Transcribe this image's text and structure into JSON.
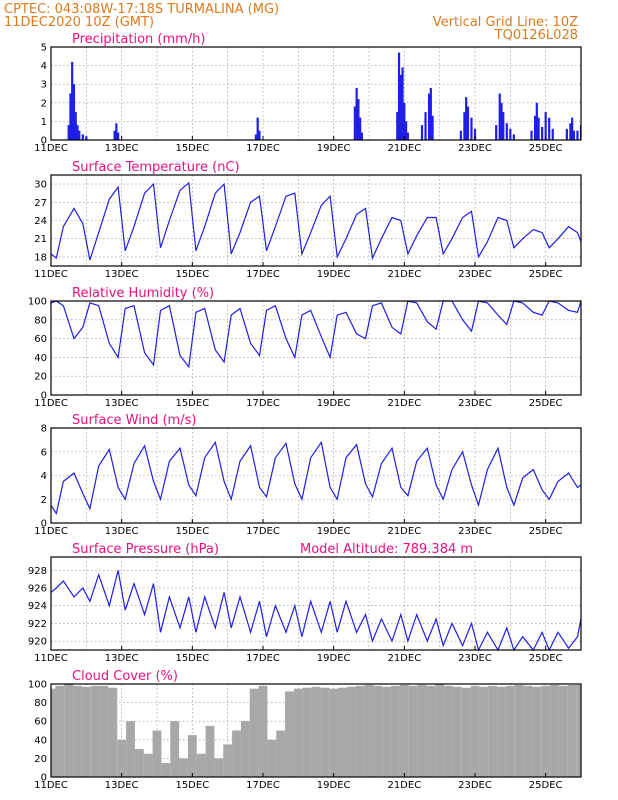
{
  "header": {
    "line1_left": "CPTEC:   043:08W-17:18S   TURMALINA (MG)",
    "line2_left": "11DEC2020 10Z (GMT)",
    "line1_right": "Vertical Grid Line: 10Z",
    "line2_right": "TQ0126L028"
  },
  "colors": {
    "header": "#e07a1e",
    "title": "#e8117f",
    "line": "#1f1fe6",
    "bar": "#1f1fe6",
    "cloud": "#a8a8a8"
  },
  "x_axis": {
    "start_day": 11,
    "end_day": 26,
    "tick_labels": [
      "11DEC",
      "13DEC",
      "15DEC",
      "17DEC",
      "19DEC",
      "21DEC",
      "23DEC",
      "25DEC"
    ]
  },
  "panels": [
    {
      "id": "precip",
      "title": "Precipitation (mm/h)",
      "extra": "",
      "type": "bar",
      "ylim": [
        0,
        5
      ],
      "yticks": [
        0,
        1,
        2,
        3,
        4,
        5
      ]
    },
    {
      "id": "temp",
      "title": "Surface Temperature (nC)",
      "extra": "",
      "type": "line",
      "ylim": [
        16.5,
        31.5
      ],
      "yticks": [
        18,
        21,
        24,
        27,
        30
      ]
    },
    {
      "id": "rh",
      "title": "Relative Humidity (%)",
      "extra": "",
      "type": "line",
      "ylim": [
        0,
        100
      ],
      "yticks": [
        0,
        20,
        40,
        60,
        80,
        100
      ]
    },
    {
      "id": "wind",
      "title": "Surface Wind (m/s)",
      "extra": "",
      "type": "line",
      "ylim": [
        0,
        8
      ],
      "yticks": [
        0,
        2,
        4,
        6,
        8
      ]
    },
    {
      "id": "pres",
      "title": "Surface Pressure (hPa)",
      "extra": "Model Altitude: 789.384 m",
      "type": "line",
      "ylim": [
        919,
        929.5
      ],
      "yticks": [
        920,
        922,
        924,
        926,
        928
      ]
    },
    {
      "id": "cloud",
      "title": "Cloud Cover (%)",
      "extra": "",
      "type": "bar",
      "ylim": [
        0,
        100
      ],
      "yticks": [
        0,
        20,
        40,
        60,
        80,
        100
      ]
    }
  ],
  "chart_data": [
    {
      "type": "bar",
      "title": "Precipitation (mm/h)",
      "ylim": [
        0,
        5
      ],
      "x": [
        11.5,
        11.55,
        11.6,
        11.65,
        11.7,
        11.75,
        11.8,
        11.9,
        12.0,
        12.8,
        12.85,
        12.9,
        16.8,
        16.85,
        16.9,
        19.6,
        19.65,
        19.7,
        19.75,
        19.8,
        20.8,
        20.85,
        20.9,
        20.95,
        21.0,
        21.05,
        21.1,
        21.5,
        21.6,
        21.7,
        21.75,
        21.8,
        22.6,
        22.7,
        22.75,
        22.8,
        22.9,
        23.0,
        23.6,
        23.7,
        23.75,
        23.8,
        23.9,
        24.0,
        24.1,
        24.6,
        24.7,
        24.75,
        24.8,
        24.9,
        25.0,
        25.1,
        25.2,
        25.6,
        25.7,
        25.75,
        25.8,
        25.9,
        26.0
      ],
      "values": [
        0.8,
        2.5,
        4.2,
        3.0,
        1.5,
        0.8,
        0.5,
        0.3,
        0.2,
        0.5,
        0.9,
        0.4,
        0.3,
        1.2,
        0.5,
        1.8,
        2.8,
        2.2,
        1.2,
        0.4,
        1.5,
        4.7,
        3.5,
        3.9,
        2.0,
        1.0,
        0.4,
        0.8,
        1.5,
        2.5,
        2.8,
        1.3,
        0.5,
        1.5,
        2.3,
        1.8,
        1.2,
        0.6,
        0.8,
        2.5,
        2.0,
        1.5,
        0.9,
        0.6,
        0.3,
        0.5,
        1.3,
        2.0,
        1.2,
        0.7,
        1.5,
        1.2,
        0.6,
        0.6,
        0.9,
        1.2,
        0.5,
        0.5,
        0.8
      ]
    },
    {
      "type": "line",
      "title": "Surface Temperature (nC)",
      "ylim": [
        16.5,
        31.5
      ],
      "x": [
        11.0,
        11.15,
        11.35,
        11.65,
        11.9,
        12.1,
        12.35,
        12.65,
        12.9,
        13.1,
        13.35,
        13.65,
        13.9,
        14.1,
        14.35,
        14.65,
        14.9,
        15.1,
        15.35,
        15.65,
        15.9,
        16.1,
        16.35,
        16.65,
        16.9,
        17.1,
        17.35,
        17.65,
        17.9,
        18.1,
        18.35,
        18.65,
        18.9,
        19.1,
        19.35,
        19.65,
        19.9,
        20.1,
        20.35,
        20.65,
        20.9,
        21.1,
        21.35,
        21.65,
        21.9,
        22.1,
        22.35,
        22.65,
        22.9,
        23.1,
        23.35,
        23.65,
        23.9,
        24.1,
        24.35,
        24.65,
        24.9,
        25.1,
        25.35,
        25.65,
        25.9,
        26.0
      ],
      "values": [
        18.5,
        17.8,
        23.0,
        26.0,
        23.5,
        17.5,
        22.0,
        27.5,
        29.5,
        19.0,
        23.0,
        28.5,
        30.0,
        19.5,
        24.0,
        29.0,
        30.2,
        19.0,
        23.0,
        28.5,
        30.0,
        18.5,
        22.0,
        27.0,
        28.0,
        19.0,
        23.0,
        28.0,
        28.5,
        18.5,
        22.0,
        26.5,
        28.0,
        18.0,
        21.0,
        25.0,
        26.0,
        17.8,
        21.0,
        24.5,
        24.0,
        18.5,
        21.5,
        24.5,
        24.5,
        18.5,
        21.0,
        24.5,
        25.5,
        18.0,
        20.5,
        24.5,
        24.0,
        19.5,
        21.0,
        22.5,
        22.0,
        19.5,
        21.0,
        23.0,
        22.0,
        20.5
      ]
    },
    {
      "type": "line",
      "title": "Relative Humidity (%)",
      "ylim": [
        0,
        100
      ],
      "x": [
        11.0,
        11.15,
        11.35,
        11.65,
        11.9,
        12.1,
        12.35,
        12.65,
        12.9,
        13.1,
        13.35,
        13.65,
        13.9,
        14.1,
        14.35,
        14.65,
        14.9,
        15.1,
        15.35,
        15.65,
        15.9,
        16.1,
        16.35,
        16.65,
        16.9,
        17.1,
        17.35,
        17.65,
        17.9,
        18.1,
        18.35,
        18.65,
        18.9,
        19.1,
        19.35,
        19.65,
        19.9,
        20.1,
        20.35,
        20.65,
        20.9,
        21.1,
        21.35,
        21.65,
        21.9,
        22.1,
        22.35,
        22.65,
        22.9,
        23.1,
        23.35,
        23.65,
        23.9,
        24.1,
        24.35,
        24.65,
        24.9,
        25.1,
        25.35,
        25.65,
        25.9,
        26.0
      ],
      "values": [
        98,
        100,
        95,
        60,
        72,
        98,
        95,
        55,
        40,
        92,
        95,
        45,
        32,
        90,
        95,
        42,
        30,
        88,
        92,
        48,
        35,
        85,
        92,
        55,
        42,
        90,
        95,
        60,
        40,
        85,
        90,
        62,
        40,
        85,
        88,
        65,
        60,
        95,
        98,
        72,
        65,
        100,
        98,
        78,
        70,
        100,
        100,
        80,
        68,
        100,
        98,
        85,
        75,
        100,
        98,
        88,
        85,
        100,
        98,
        90,
        88,
        100
      ]
    },
    {
      "type": "line",
      "title": "Surface Wind (m/s)",
      "ylim": [
        0,
        8
      ],
      "x": [
        11.0,
        11.15,
        11.35,
        11.65,
        11.9,
        12.1,
        12.35,
        12.65,
        12.9,
        13.1,
        13.35,
        13.65,
        13.9,
        14.1,
        14.35,
        14.65,
        14.9,
        15.1,
        15.35,
        15.65,
        15.9,
        16.1,
        16.35,
        16.65,
        16.9,
        17.1,
        17.35,
        17.65,
        17.9,
        18.1,
        18.35,
        18.65,
        18.9,
        19.1,
        19.35,
        19.65,
        19.9,
        20.1,
        20.35,
        20.65,
        20.9,
        21.1,
        21.35,
        21.65,
        21.9,
        22.1,
        22.35,
        22.65,
        22.9,
        23.1,
        23.35,
        23.65,
        23.9,
        24.1,
        24.35,
        24.65,
        24.9,
        25.1,
        25.35,
        25.65,
        25.9,
        26.0
      ],
      "values": [
        1.5,
        0.8,
        3.5,
        4.2,
        2.5,
        1.2,
        4.8,
        6.2,
        3.0,
        2.0,
        5.0,
        6.5,
        3.5,
        2.0,
        5.2,
        6.3,
        3.2,
        2.3,
        5.5,
        6.8,
        3.5,
        2.0,
        5.2,
        6.5,
        3.0,
        2.2,
        5.5,
        6.7,
        3.3,
        2.0,
        5.5,
        6.8,
        3.0,
        2.0,
        5.5,
        6.6,
        3.3,
        2.2,
        5.0,
        6.3,
        3.0,
        2.3,
        5.2,
        6.3,
        3.2,
        2.0,
        4.5,
        6.0,
        3.2,
        1.5,
        4.5,
        6.3,
        3.0,
        1.5,
        3.8,
        4.5,
        2.8,
        2.0,
        3.5,
        4.2,
        3.0,
        3.2
      ]
    },
    {
      "type": "line",
      "title": "Surface Pressure (hPa)",
      "ylim": [
        919,
        929.5
      ],
      "x": [
        11.0,
        11.15,
        11.35,
        11.65,
        11.9,
        12.1,
        12.35,
        12.65,
        12.9,
        13.1,
        13.35,
        13.65,
        13.9,
        14.1,
        14.35,
        14.65,
        14.9,
        15.1,
        15.35,
        15.65,
        15.9,
        16.1,
        16.35,
        16.65,
        16.9,
        17.1,
        17.35,
        17.65,
        17.9,
        18.1,
        18.35,
        18.65,
        18.9,
        19.1,
        19.35,
        19.65,
        19.9,
        20.1,
        20.35,
        20.65,
        20.9,
        21.1,
        21.35,
        21.65,
        21.9,
        22.1,
        22.35,
        22.65,
        22.9,
        23.1,
        23.35,
        23.65,
        23.9,
        24.1,
        24.35,
        24.65,
        24.9,
        25.1,
        25.35,
        25.65,
        25.9,
        26.0
      ],
      "values": [
        925.5,
        926.0,
        926.8,
        925.0,
        926.0,
        924.5,
        927.5,
        924.0,
        928.0,
        923.5,
        926.5,
        923.0,
        926.5,
        921.0,
        925.0,
        921.5,
        925.0,
        921.0,
        925.0,
        921.5,
        925.5,
        921.5,
        925.0,
        921.0,
        924.5,
        920.5,
        924.0,
        921.0,
        924.0,
        920.5,
        924.5,
        921.0,
        924.5,
        921.0,
        924.5,
        921.0,
        923.0,
        920.0,
        922.5,
        920.0,
        923.0,
        920.0,
        923.0,
        920.0,
        922.5,
        919.5,
        922.0,
        919.5,
        922.0,
        919.0,
        921.0,
        919.0,
        921.5,
        919.0,
        920.5,
        919.0,
        921.0,
        919.0,
        921.0,
        919.2,
        920.5,
        922.5
      ]
    },
    {
      "type": "bar",
      "title": "Cloud Cover (%)",
      "ylim": [
        0,
        100
      ],
      "x": [
        11.0,
        11.25,
        11.5,
        11.75,
        12.0,
        12.25,
        12.5,
        12.75,
        13.0,
        13.25,
        13.5,
        13.75,
        14.0,
        14.25,
        14.5,
        14.75,
        15.0,
        15.25,
        15.5,
        15.75,
        16.0,
        16.25,
        16.5,
        16.75,
        17.0,
        17.25,
        17.5,
        17.75,
        18.0,
        18.25,
        18.5,
        18.75,
        19.0,
        19.25,
        19.5,
        19.75,
        20.0,
        20.25,
        20.5,
        20.75,
        21.0,
        21.25,
        21.5,
        21.75,
        22.0,
        22.25,
        22.5,
        22.75,
        23.0,
        23.25,
        23.5,
        23.75,
        24.0,
        24.25,
        24.5,
        24.75,
        25.0,
        25.25,
        25.5,
        25.75,
        26.0
      ],
      "values": [
        95,
        98,
        100,
        98,
        97,
        98,
        98,
        96,
        40,
        60,
        30,
        25,
        50,
        15,
        60,
        20,
        45,
        25,
        55,
        20,
        35,
        50,
        60,
        95,
        98,
        40,
        50,
        92,
        95,
        96,
        97,
        96,
        95,
        96,
        97,
        98,
        99,
        98,
        97,
        98,
        99,
        98,
        99,
        98,
        100,
        98,
        97,
        96,
        98,
        97,
        98,
        97,
        98,
        99,
        98,
        97,
        98,
        99,
        98,
        99,
        99
      ]
    }
  ]
}
